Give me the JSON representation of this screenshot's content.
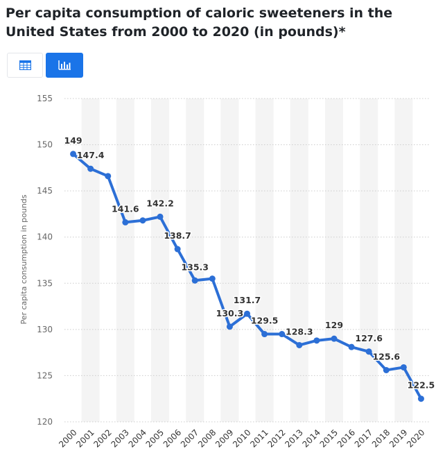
{
  "title": "Per capita consumption of caloric sweeteners in the United States from 2000 to 2020 (in pounds)*",
  "toolbar": {
    "table_view_icon": "table-icon",
    "chart_view_icon": "bar-chart-icon",
    "active_view": "chart"
  },
  "colors": {
    "line": "#2c6fd6",
    "active_button": "#1a74e8",
    "band": "#f4f4f4",
    "grid": "#cccccc"
  },
  "chart_data": {
    "type": "line",
    "title": "Per capita consumption of caloric sweeteners in the United States from 2000 to 2020 (in pounds)*",
    "xlabel": "",
    "ylabel": "Per capita consumption in pounds",
    "ylim": [
      120,
      155
    ],
    "yticks": [
      120,
      125,
      130,
      135,
      140,
      145,
      150,
      155
    ],
    "grid": true,
    "categories": [
      "2000",
      "2001",
      "2002",
      "2003",
      "2004",
      "2005",
      "2006",
      "2007",
      "2008",
      "2009",
      "2010",
      "2011",
      "2012",
      "2013",
      "2014",
      "2015",
      "2016",
      "2017",
      "2018",
      "2019",
      "2020"
    ],
    "series": [
      {
        "values": [
          149,
          147.4,
          146.6,
          141.6,
          141.8,
          142.2,
          138.7,
          135.3,
          135.5,
          130.3,
          131.7,
          129.5,
          129.5,
          128.3,
          128.8,
          129,
          128.1,
          127.6,
          125.6,
          125.9,
          122.5
        ]
      }
    ],
    "data_labels": [
      {
        "index": 0,
        "text": "149"
      },
      {
        "index": 1,
        "text": "147.4"
      },
      {
        "index": 3,
        "text": "141.6"
      },
      {
        "index": 5,
        "text": "142.2"
      },
      {
        "index": 6,
        "text": "138.7"
      },
      {
        "index": 7,
        "text": "135.3"
      },
      {
        "index": 9,
        "text": "130.3"
      },
      {
        "index": 10,
        "text": "131.7"
      },
      {
        "index": 11,
        "text": "129.5"
      },
      {
        "index": 13,
        "text": "128.3"
      },
      {
        "index": 15,
        "text": "129"
      },
      {
        "index": 17,
        "text": "127.6"
      },
      {
        "index": 18,
        "text": "125.6"
      },
      {
        "index": 20,
        "text": "122.5"
      }
    ]
  }
}
